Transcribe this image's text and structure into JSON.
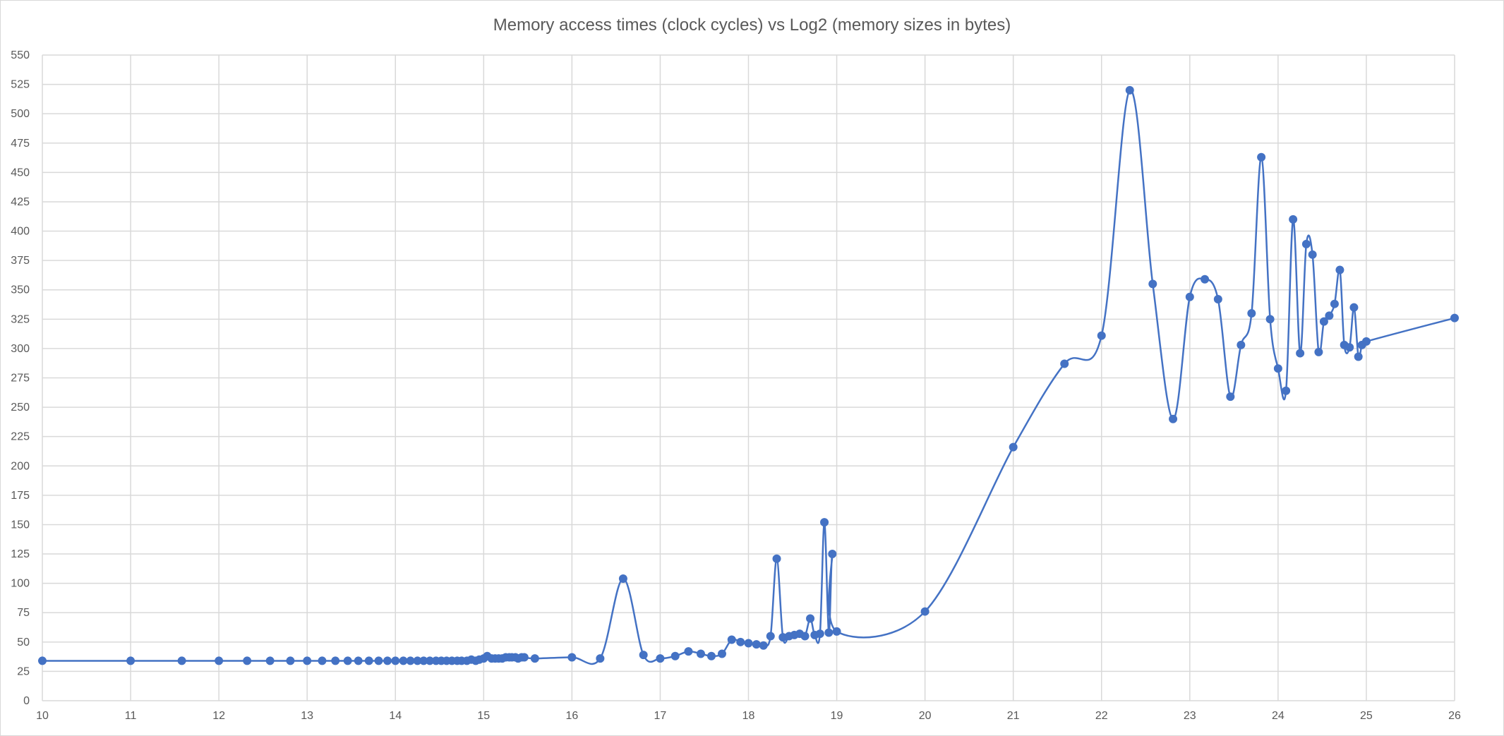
{
  "chart_data": {
    "type": "scatter",
    "title": "Memory access times (clock cycles) vs Log2 (memory sizes in bytes)",
    "xlabel": "",
    "ylabel": "",
    "xlim": [
      10,
      26
    ],
    "ylim": [
      0,
      550
    ],
    "x_ticks": [
      10,
      11,
      12,
      13,
      14,
      15,
      16,
      17,
      18,
      19,
      20,
      21,
      22,
      23,
      24,
      25,
      26
    ],
    "y_ticks": [
      0,
      25,
      50,
      75,
      100,
      125,
      150,
      175,
      200,
      225,
      250,
      275,
      300,
      325,
      350,
      375,
      400,
      425,
      450,
      475,
      500,
      525,
      550
    ],
    "grid": true,
    "legend": "none",
    "smoothed_line": true,
    "colors": {
      "series": "#4472c4",
      "grid": "#d9d9d9",
      "text": "#595959"
    },
    "series": [
      {
        "x": [
          10,
          11,
          11.58,
          12,
          12.32,
          12.58,
          12.81,
          13,
          13.17,
          13.32,
          13.46,
          13.58,
          13.7,
          13.81,
          13.91,
          14,
          14.09,
          14.17,
          14.25,
          14.32,
          14.39,
          14.46,
          14.52,
          14.58,
          14.64,
          14.7,
          14.75,
          14.81,
          14.86,
          14.91,
          14.95,
          15,
          15.04,
          15.09,
          15.13,
          15.17,
          15.21,
          15.25,
          15.29,
          15.32,
          15.36,
          15.39,
          15.43,
          15.46,
          15.58,
          16,
          16.32,
          16.58,
          16.81,
          17,
          17.17,
          17.32,
          17.46,
          17.58,
          17.7,
          17.81,
          17.91,
          18,
          18.09,
          18.17,
          18.25,
          18.32,
          18.39,
          18.46,
          18.52,
          18.58,
          18.64,
          18.7,
          18.75,
          18.81,
          18.86,
          18.91,
          18.95,
          19,
          20,
          21,
          21.58,
          22,
          22.32,
          22.58,
          22.81,
          23,
          23.17,
          23.32,
          23.46,
          23.58,
          23.7,
          23.81,
          23.91,
          24,
          24.09,
          24.17,
          24.25,
          24.32,
          24.39,
          24.46,
          24.52,
          24.58,
          24.64,
          24.7,
          24.75,
          24.81,
          24.86,
          24.91,
          24.95,
          25,
          26
        ],
        "y": [
          34,
          34,
          34,
          34,
          34,
          34,
          34,
          34,
          34,
          34,
          34,
          34,
          34,
          34,
          34,
          34,
          34,
          34,
          34,
          34,
          34,
          34,
          34,
          34,
          34,
          34,
          34,
          34,
          35,
          34,
          35,
          36,
          38,
          36,
          36,
          36,
          36,
          37,
          37,
          37,
          37,
          36,
          37,
          37,
          36,
          37,
          36,
          104,
          39,
          36,
          38,
          42,
          40,
          38,
          40,
          52,
          50,
          49,
          48,
          47,
          55,
          121,
          54,
          55,
          56,
          57,
          55,
          70,
          56,
          57,
          152,
          58,
          125,
          59,
          76,
          216,
          287,
          311,
          520,
          355,
          240,
          344,
          359,
          342,
          259,
          303,
          330,
          463,
          325,
          283,
          264,
          410,
          296,
          389,
          380,
          297,
          323,
          328,
          338,
          367,
          303,
          301,
          335,
          293,
          303,
          306,
          326
        ]
      }
    ]
  }
}
